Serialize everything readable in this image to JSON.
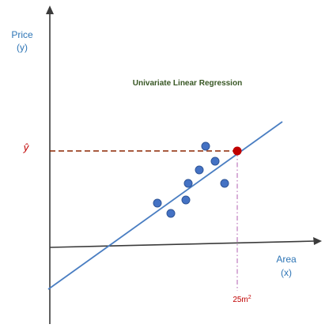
{
  "title": "Univariate Linear Regression",
  "y_axis_label": {
    "line1": "Price",
    "line2": "(y)"
  },
  "x_axis_label": {
    "line1": "Area",
    "line2": "(x)"
  },
  "prediction_label": "ŷ",
  "input_label": {
    "base": "25m",
    "exp": "2"
  },
  "colors": {
    "axis": "#3b3b3b",
    "axis_label": "#2e75b6",
    "title": "#375623",
    "regression_line": "#4a7ec2",
    "points_fill": "#4472c4",
    "points_stroke": "#2f5597",
    "prediction_point": "#c00000",
    "prediction_guide": "#8b2500",
    "input_guide": "#b05fb0",
    "prediction_label": "#c00000",
    "input_label": "#c00000"
  },
  "icons": {
    "y_axis_arrow": "arrow-up-icon",
    "x_axis_arrow": "arrow-right-icon"
  }
}
